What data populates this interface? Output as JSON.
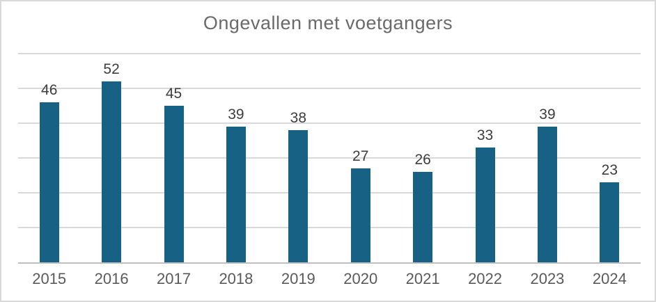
{
  "chart_data": {
    "type": "bar",
    "title": "Ongevallen met voetgangers",
    "categories": [
      "2015",
      "2016",
      "2017",
      "2018",
      "2019",
      "2020",
      "2021",
      "2022",
      "2023",
      "2024"
    ],
    "values": [
      46,
      52,
      45,
      39,
      38,
      27,
      26,
      33,
      39,
      23
    ],
    "xlabel": "",
    "ylabel": "",
    "ylim": [
      0,
      60
    ],
    "gridline_step": 10,
    "grid": true,
    "legend": false,
    "data_labels": true,
    "bar_color": "#176284"
  },
  "colors": {
    "bar": "#176284",
    "title_text": "#6a6a6a",
    "axis_label_text": "#5a5a5a",
    "data_label_text": "#3d3d3d",
    "gridline": "#d9d9d9",
    "axis_line": "#c0c0c0",
    "card_border": "#d9d9d9",
    "background": "#ffffff"
  }
}
